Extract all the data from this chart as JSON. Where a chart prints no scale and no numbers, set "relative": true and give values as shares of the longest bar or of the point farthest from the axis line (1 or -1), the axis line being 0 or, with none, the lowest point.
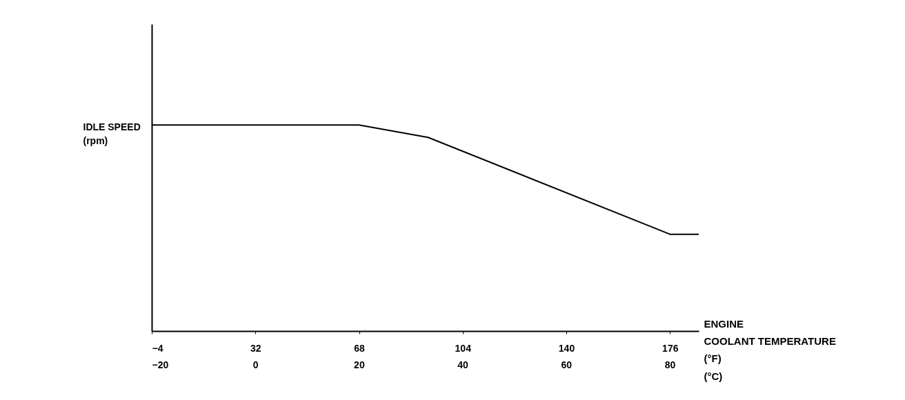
{
  "chart_data": {
    "type": "line",
    "relative": true,
    "xlabel": "ENGINE\nCOOLANT TEMPERATURE\n(°F)",
    "x2label": "(°C)",
    "ylabel": "IDLE SPEED\n(rpm)",
    "xlim": [
      -4,
      186
    ],
    "xticks": [
      -4,
      32,
      68,
      104,
      140,
      176
    ],
    "x2lim": [
      -20,
      85.6
    ],
    "x2ticks": [
      -20,
      0,
      20,
      40,
      60,
      80
    ],
    "x": [
      -4,
      68,
      92,
      176,
      186
    ],
    "series": [
      {
        "color": "#000000",
        "values": [
          1,
          1,
          0.94,
          0.47,
          0.47
        ]
      }
    ],
    "grid": false,
    "marker": "none",
    "line_style": "solid"
  }
}
